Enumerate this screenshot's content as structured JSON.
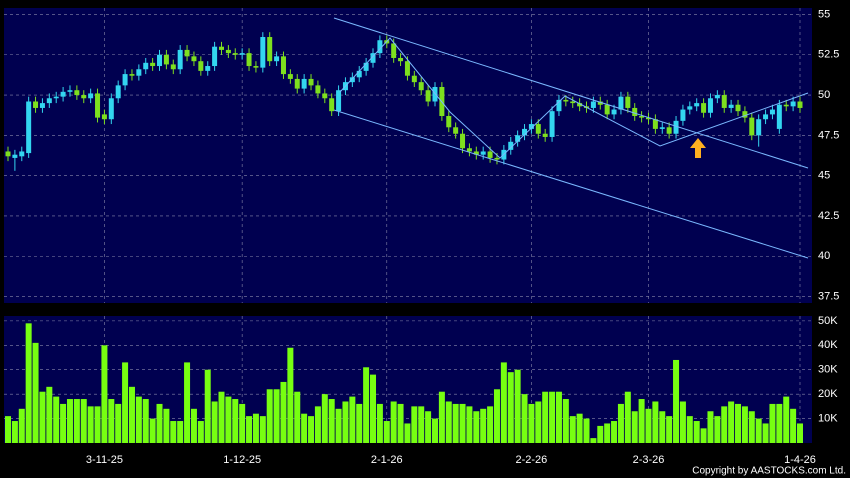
{
  "chart_data": {
    "type": "candlestick",
    "up_color": "#33d6f0",
    "down_color": "#7ee01e",
    "volume_color": "#77ff11",
    "grid": true,
    "copyright": "Copyright by AASTOCKS.com Ltd.",
    "categories": [
      null,
      null,
      null,
      null,
      null,
      null,
      null,
      null,
      null,
      null,
      null,
      null,
      null,
      null,
      "3-11-25",
      null,
      null,
      null,
      null,
      null,
      null,
      null,
      null,
      null,
      null,
      null,
      null,
      null,
      null,
      null,
      null,
      null,
      null,
      null,
      "1-12-25",
      null,
      null,
      null,
      null,
      null,
      null,
      null,
      null,
      null,
      null,
      null,
      null,
      null,
      null,
      null,
      null,
      null,
      null,
      null,
      null,
      "2-1-26",
      null,
      null,
      null,
      null,
      null,
      null,
      null,
      null,
      null,
      null,
      null,
      null,
      null,
      null,
      null,
      null,
      null,
      null,
      null,
      null,
      "2-2-26",
      null,
      null,
      null,
      null,
      null,
      null,
      null,
      null,
      null,
      null,
      null,
      null,
      null,
      null,
      null,
      null,
      "2-3-26",
      null,
      null,
      null,
      null,
      null,
      null,
      null,
      null,
      null,
      null,
      null,
      null,
      null,
      null,
      null,
      null,
      null,
      null,
      null,
      null,
      null,
      "1-4-26"
    ],
    "open": [
      46.5,
      46.1,
      46.2,
      46.4,
      49.6,
      49.2,
      49.5,
      49.8,
      49.9,
      50.2,
      50.3,
      50.0,
      49.8,
      50.1,
      48.8,
      48.5,
      49.8,
      50.6,
      51.3,
      51.2,
      51.6,
      52.0,
      51.8,
      52.5,
      51.9,
      51.6,
      52.8,
      52.4,
      52.1,
      51.5,
      51.8,
      53.0,
      52.8,
      52.6,
      52.5,
      52.6,
      51.8,
      51.7,
      53.6,
      52.1,
      52.4,
      51.3,
      51.0,
      50.4,
      51.0,
      50.6,
      50.1,
      49.8,
      49.0,
      50.3,
      50.8,
      51.1,
      51.5,
      52.0,
      52.6,
      53.4,
      53.2,
      52.3,
      52.1,
      51.2,
      50.8,
      50.3,
      49.6,
      50.5,
      48.7,
      48.0,
      47.6,
      46.7,
      46.5,
      46.3,
      46.5,
      46.1,
      46.0,
      46.6,
      47.1,
      47.5,
      47.9,
      48.2,
      47.6,
      47.4,
      49.0,
      49.7,
      49.6,
      49.5,
      49.3,
      49.2,
      49.6,
      49.4,
      48.8,
      49.1,
      49.9,
      49.2,
      48.7,
      48.6,
      48.5,
      47.9,
      48.0,
      47.6,
      48.4,
      49.1,
      49.3,
      49.5,
      48.9,
      49.8,
      50.0,
      49.2,
      49.4,
      49.0,
      48.6,
      47.5,
      48.5,
      48.8,
      47.9,
      49.4,
      49.3,
      49.6
    ],
    "high": [
      46.8,
      46.6,
      46.8,
      49.9,
      49.9,
      49.8,
      50.1,
      50.2,
      50.5,
      50.6,
      50.6,
      50.3,
      50.4,
      50.4,
      49.1,
      50.1,
      50.9,
      51.6,
      51.6,
      51.9,
      52.3,
      52.3,
      52.8,
      52.8,
      52.2,
      53.1,
      53.1,
      52.7,
      52.4,
      52.1,
      53.3,
      53.3,
      53.1,
      52.9,
      52.9,
      52.9,
      52.1,
      53.9,
      53.9,
      52.7,
      52.7,
      51.6,
      51.3,
      51.3,
      51.3,
      50.9,
      50.4,
      50.1,
      50.6,
      51.1,
      51.4,
      51.8,
      52.3,
      52.9,
      53.7,
      53.7,
      53.5,
      52.6,
      52.4,
      51.5,
      51.1,
      50.6,
      50.8,
      50.8,
      49.0,
      48.3,
      47.9,
      47.0,
      46.8,
      46.8,
      46.8,
      46.4,
      46.9,
      47.4,
      47.8,
      48.2,
      48.5,
      48.5,
      47.9,
      49.3,
      50.0,
      50.0,
      49.9,
      49.8,
      49.6,
      49.9,
      49.9,
      49.7,
      49.4,
      50.2,
      50.2,
      49.5,
      49.0,
      48.9,
      48.8,
      48.3,
      48.3,
      48.7,
      49.4,
      49.6,
      49.8,
      49.8,
      50.1,
      50.3,
      50.3,
      49.7,
      49.7,
      49.3,
      48.9,
      48.8,
      49.1,
      49.4,
      49.7,
      49.7,
      49.9,
      49.9
    ],
    "low": [
      45.9,
      45.3,
      45.9,
      46.1,
      48.9,
      48.9,
      49.2,
      49.5,
      49.6,
      49.9,
      49.7,
      49.5,
      49.5,
      48.3,
      48.2,
      48.2,
      49.5,
      50.3,
      50.9,
      50.9,
      51.3,
      51.5,
      51.5,
      51.6,
      51.3,
      51.3,
      52.1,
      51.8,
      51.2,
      51.2,
      51.5,
      52.5,
      52.3,
      52.2,
      52.2,
      51.5,
      51.4,
      51.4,
      51.8,
      51.8,
      51.0,
      50.7,
      50.1,
      50.1,
      50.3,
      49.8,
      49.5,
      48.7,
      48.7,
      50.0,
      50.5,
      50.8,
      51.2,
      51.7,
      52.3,
      52.9,
      52.0,
      51.8,
      50.9,
      50.5,
      50.0,
      49.3,
      49.3,
      48.4,
      47.7,
      47.3,
      46.4,
      46.2,
      46.0,
      46.0,
      45.8,
      45.7,
      45.7,
      46.3,
      46.8,
      47.2,
      47.6,
      47.3,
      47.1,
      47.1,
      48.7,
      49.3,
      49.2,
      49.0,
      48.9,
      48.9,
      49.1,
      48.5,
      48.5,
      48.8,
      48.9,
      48.4,
      48.3,
      48.2,
      47.6,
      47.6,
      47.3,
      47.3,
      48.1,
      48.8,
      49.0,
      48.6,
      48.6,
      49.5,
      48.9,
      48.9,
      48.7,
      48.3,
      47.2,
      46.8,
      48.2,
      48.5,
      47.6,
      49.0,
      49.0,
      48.9
    ],
    "close": [
      46.2,
      46.3,
      46.5,
      49.6,
      49.2,
      49.5,
      49.8,
      49.9,
      50.2,
      50.3,
      50.0,
      49.8,
      50.1,
      48.6,
      48.5,
      49.8,
      50.6,
      51.3,
      51.2,
      51.6,
      52.0,
      51.8,
      52.5,
      51.9,
      51.6,
      52.8,
      52.4,
      52.1,
      51.5,
      51.8,
      53.0,
      52.8,
      52.6,
      52.5,
      52.6,
      51.8,
      51.7,
      53.6,
      52.1,
      52.4,
      51.3,
      51.0,
      50.4,
      51.0,
      50.6,
      50.1,
      49.8,
      49.0,
      50.3,
      50.8,
      51.1,
      51.5,
      52.0,
      52.6,
      53.4,
      53.2,
      52.3,
      52.1,
      51.2,
      50.8,
      50.3,
      49.6,
      50.5,
      48.7,
      48.0,
      47.6,
      46.7,
      46.5,
      46.3,
      46.5,
      46.1,
      46.0,
      46.6,
      47.1,
      47.5,
      47.9,
      48.2,
      47.6,
      47.4,
      49.0,
      49.7,
      49.6,
      49.5,
      49.3,
      49.2,
      49.6,
      49.4,
      48.8,
      49.1,
      49.9,
      49.2,
      48.7,
      48.6,
      48.5,
      47.9,
      48.0,
      47.6,
      48.4,
      49.1,
      49.3,
      49.5,
      48.9,
      49.8,
      50.0,
      49.2,
      49.4,
      49.0,
      48.6,
      47.5,
      48.5,
      48.8,
      49.1,
      49.4,
      49.3,
      49.6,
      49.2
    ],
    "volume": [
      11000,
      9000,
      14000,
      49000,
      41000,
      21000,
      23000,
      19000,
      16000,
      18000,
      18000,
      18000,
      15000,
      15000,
      40000,
      18000,
      16000,
      33000,
      23000,
      19000,
      18000,
      10000,
      16000,
      14000,
      9000,
      9000,
      33000,
      14000,
      9000,
      30000,
      17000,
      21000,
      19000,
      18000,
      16000,
      11000,
      12000,
      11000,
      22000,
      22000,
      25000,
      39000,
      21000,
      12000,
      11000,
      15000,
      20000,
      18000,
      14000,
      17000,
      19000,
      16000,
      31000,
      28000,
      16000,
      9000,
      17000,
      16000,
      8000,
      15000,
      15000,
      13000,
      10000,
      21000,
      17000,
      16000,
      16000,
      15000,
      13000,
      14000,
      15000,
      22000,
      33000,
      29000,
      30000,
      20000,
      16000,
      17000,
      21000,
      21000,
      21000,
      18000,
      11000,
      12000,
      10000,
      2000,
      7000,
      8000,
      9000,
      16000,
      21000,
      13000,
      18000,
      14000,
      17000,
      13000,
      11000,
      34000,
      17000,
      11000,
      9000,
      6000,
      13000,
      11000,
      15000,
      17000,
      16000,
      15000,
      13000,
      10000,
      8000,
      16000,
      16000,
      19000,
      14000,
      8000
    ],
    "ylim": [
      37.1,
      55.4
    ],
    "yticks": [
      37.5,
      40,
      42.5,
      45,
      47.5,
      50,
      52.5,
      55
    ],
    "y2lim": [
      0,
      52000
    ],
    "y2ticks": [
      {
        "value": 10000,
        "label": "10K"
      },
      {
        "value": 20000,
        "label": "20K"
      },
      {
        "value": 30000,
        "label": "30K"
      },
      {
        "value": 40000,
        "label": "40K"
      },
      {
        "value": 50000,
        "label": "50K"
      }
    ]
  }
}
